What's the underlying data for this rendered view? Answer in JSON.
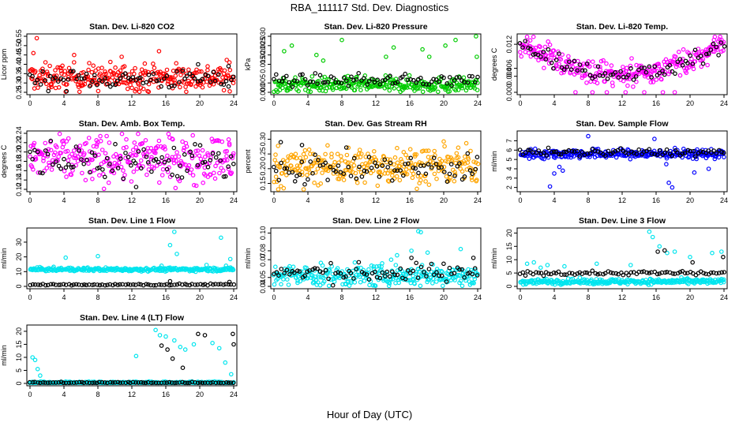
{
  "figure": {
    "title": "RBA_111117  Std. Dev. Diagnostics",
    "xlabel": "Hour of Day (UTC)"
  },
  "chart_data": [
    {
      "type": "scatter",
      "title": "Stan. Dev. Li-820 CO2",
      "ylabel": "Licor ppm",
      "xticks": [
        0,
        4,
        8,
        12,
        16,
        20,
        24
      ],
      "yticks": [
        "0.25",
        "0.30",
        "0.35",
        "0.40",
        "0.45",
        "0.50",
        "0.55"
      ],
      "xlim": [
        0,
        24
      ],
      "ylim": [
        0.25,
        0.55
      ],
      "series": [
        {
          "color": "#ff0000",
          "base": 0.33,
          "spread": 0.035,
          "outliers": [
            [
              0.8,
              0.54
            ],
            [
              0.4,
              0.46
            ],
            [
              5.2,
              0.45
            ],
            [
              10.8,
              0.44
            ],
            [
              15.2,
              0.47
            ],
            [
              23.5,
              0.41
            ]
          ]
        },
        {
          "color": "#000000",
          "base": 0.32,
          "spread": 0.025,
          "outliers": [
            [
              19.8,
              0.4
            ],
            [
              23.4,
              0.39
            ]
          ]
        }
      ]
    },
    {
      "type": "scatter",
      "title": "Stan. Dev. Li-820 Pressure",
      "ylabel": "kPa",
      "xticks": [
        0,
        4,
        8,
        12,
        16,
        20,
        24
      ],
      "yticks": [
        "0.000",
        "0.005",
        "0.015",
        "0.020",
        "0.025",
        "0.030"
      ],
      "xlim": [
        0,
        24
      ],
      "ylim": [
        0,
        0.03
      ],
      "series": [
        {
          "color": "#00cc00",
          "base": 0.004,
          "spread": 0.002,
          "outliers": [
            [
              1.2,
              0.022
            ],
            [
              2.1,
              0.025
            ],
            [
              5.0,
              0.02
            ],
            [
              5.8,
              0.017
            ],
            [
              8.0,
              0.028
            ],
            [
              13.2,
              0.019
            ],
            [
              14.1,
              0.024
            ],
            [
              17.5,
              0.023
            ],
            [
              18.3,
              0.019
            ],
            [
              20.2,
              0.025
            ],
            [
              21.4,
              0.028
            ],
            [
              23.8,
              0.03
            ],
            [
              23.9,
              0.019
            ]
          ]
        },
        {
          "color": "#000000",
          "base": 0.0065,
          "spread": 0.0015,
          "outliers": []
        }
      ]
    },
    {
      "type": "scatter",
      "title": "Stan. Dev. Li-820 Temp.",
      "ylabel": "degrees C",
      "xticks": [
        0,
        4,
        8,
        12,
        16,
        20,
        24
      ],
      "yticks": [
        "0.000",
        "0.004",
        "0.006",
        "0.012"
      ],
      "xlim": [
        0,
        24
      ],
      "ylim": [
        0,
        0.014
      ],
      "series": [
        {
          "color": "#ff00ff",
          "base": 0.006,
          "spread": 0.003,
          "outliers": [
            [
              6.5,
              0.0
            ],
            [
              8.5,
              0.0
            ],
            [
              10.2,
              0.0
            ],
            [
              12.4,
              0.0
            ],
            [
              14.6,
              0.0
            ],
            [
              16.8,
              0.0
            ],
            [
              18.2,
              0.0
            ]
          ]
        },
        {
          "color": "#000000",
          "base": 0.007,
          "spread": 0.002,
          "outliers": []
        }
      ]
    },
    {
      "type": "scatter",
      "title": "Stan. Dev. Amb. Box Temp.",
      "ylabel": "degrees C",
      "xticks": [
        0,
        4,
        8,
        12,
        16,
        20,
        24
      ],
      "yticks": [
        "0.12",
        "0.14",
        "0.16",
        "0.18",
        "0.20",
        "0.22",
        "0.24"
      ],
      "xlim": [
        0,
        24
      ],
      "ylim": [
        0.12,
        0.24
      ],
      "series": [
        {
          "color": "#ff00ff",
          "base": 0.185,
          "spread": 0.025,
          "outliers": [
            [
              0.4,
              0.215
            ],
            [
              23.5,
              0.215
            ]
          ]
        },
        {
          "color": "#000000",
          "base": 0.18,
          "spread": 0.022,
          "outliers": [
            [
              12.5,
              0.125
            ]
          ]
        }
      ]
    },
    {
      "type": "scatter",
      "title": "Stan. Dev. Gas Stream RH",
      "ylabel": "percent",
      "xticks": [
        0,
        4,
        8,
        12,
        16,
        20,
        24
      ],
      "yticks": [
        "0.15",
        "0.20",
        "0.25",
        "0.30"
      ],
      "xlim": [
        0,
        24
      ],
      "ylim": [
        0.13,
        0.32
      ],
      "series": [
        {
          "color": "#ffa500",
          "base": 0.21,
          "spread": 0.03,
          "outliers": [
            [
              0.5,
              0.13
            ],
            [
              3.5,
              0.13
            ],
            [
              7.5,
              0.25
            ],
            [
              14.5,
              0.27
            ]
          ]
        },
        {
          "color": "#000000",
          "base": 0.2,
          "spread": 0.025,
          "outliers": [
            [
              0.8,
              0.29
            ],
            [
              3.3,
              0.28
            ]
          ]
        }
      ]
    },
    {
      "type": "scatter",
      "title": "Stan. Dev. Sample Flow",
      "ylabel": "ml/min",
      "xticks": [
        0,
        4,
        8,
        12,
        16,
        20,
        24
      ],
      "yticks": [
        "2",
        "3",
        "4",
        "5",
        "6",
        "7"
      ],
      "xlim": [
        0,
        24
      ],
      "ylim": [
        1.8,
        7.8
      ],
      "series": [
        {
          "color": "#0000ff",
          "base": 5.6,
          "spread": 0.25,
          "outliers": [
            [
              3.5,
              2.1
            ],
            [
              4.0,
              3.5
            ],
            [
              4.6,
              4.2
            ],
            [
              5.0,
              3.8
            ],
            [
              8.0,
              7.5
            ],
            [
              17.5,
              2.5
            ],
            [
              17.9,
              2.0
            ],
            [
              17.2,
              4.5
            ],
            [
              20.5,
              3.6
            ],
            [
              15.8,
              7.2
            ],
            [
              22.2,
              4.0
            ]
          ]
        },
        {
          "color": "#000000",
          "base": 5.75,
          "spread": 0.2,
          "outliers": []
        }
      ]
    },
    {
      "type": "scatter",
      "title": "Stan. Dev. Line 1 Flow",
      "ylabel": "ml/min",
      "xticks": [
        0,
        4,
        8,
        12,
        16,
        20,
        24
      ],
      "yticks": [
        "0",
        "10",
        "20",
        "30"
      ],
      "xlim": [
        0,
        24
      ],
      "ylim": [
        0,
        38
      ],
      "series": [
        {
          "color": "#00e5ee",
          "base": 11.5,
          "spread": 0.6,
          "outliers": [
            [
              4.2,
              19.5
            ],
            [
              8.0,
              20.5
            ],
            [
              16.5,
              28.0
            ],
            [
              17.0,
              37.0
            ],
            [
              17.3,
              22.0
            ],
            [
              22.5,
              33.0
            ],
            [
              23.6,
              18.5
            ],
            [
              15.5,
              14.0
            ],
            [
              20.8,
              14.5
            ],
            [
              23.1,
              14.0
            ]
          ]
        },
        {
          "color": "#000000",
          "base": 1.2,
          "spread": 0.3,
          "outliers": [
            [
              16.5,
              3.5
            ],
            [
              23.5,
              3.0
            ]
          ]
        }
      ]
    },
    {
      "type": "scatter",
      "title": "Stan. Dev. Line 2 Flow",
      "ylabel": "ml/min",
      "xticks": [
        0,
        4,
        8,
        12,
        16,
        20,
        24
      ],
      "yticks": [
        "0.04",
        "0.05",
        "0.07",
        "0.08",
        "0.10"
      ],
      "xlim": [
        0,
        24
      ],
      "ylim": [
        0.04,
        0.103
      ],
      "series": [
        {
          "color": "#00e5ee",
          "base": 0.052,
          "spread": 0.006,
          "outliers": [
            [
              17.0,
              0.102
            ],
            [
              17.3,
              0.101
            ],
            [
              13.8,
              0.07
            ],
            [
              14.5,
              0.075
            ],
            [
              16.2,
              0.08
            ],
            [
              18.1,
              0.078
            ],
            [
              22.0,
              0.082
            ]
          ]
        },
        {
          "color": "#000000",
          "base": 0.055,
          "spread": 0.005,
          "outliers": [
            [
              16.2,
              0.072
            ],
            [
              23.5,
              0.072
            ]
          ]
        }
      ]
    },
    {
      "type": "scatter",
      "title": "Stan. Dev. Line 3 Flow",
      "ylabel": "ml/min",
      "xticks": [
        0,
        4,
        8,
        12,
        16,
        20,
        24
      ],
      "yticks": [
        "0",
        "5",
        "10",
        "15",
        "20"
      ],
      "xlim": [
        0,
        24
      ],
      "ylim": [
        0,
        21
      ],
      "series": [
        {
          "color": "#00e5ee",
          "base": 1.8,
          "spread": 0.5,
          "outliers": [
            [
              0.8,
              8.5
            ],
            [
              1.6,
              9.0
            ],
            [
              2.4,
              7.0
            ],
            [
              3.2,
              8.0
            ],
            [
              5.2,
              7.5
            ],
            [
              9.0,
              8.5
            ],
            [
              13.0,
              8.0
            ],
            [
              15.2,
              20.5
            ],
            [
              15.6,
              18.5
            ],
            [
              16.4,
              15.0
            ],
            [
              17.3,
              12.5
            ],
            [
              18.2,
              13.0
            ],
            [
              20.0,
              11.0
            ],
            [
              22.6,
              12.5
            ],
            [
              23.7,
              13.0
            ]
          ]
        },
        {
          "color": "#000000",
          "base": 5.0,
          "spread": 0.4,
          "outliers": [
            [
              16.2,
              13.0
            ],
            [
              17.0,
              13.5
            ],
            [
              20.3,
              9.0
            ],
            [
              23.9,
              11.0
            ]
          ]
        }
      ]
    },
    {
      "type": "scatter",
      "title": "Stan. Dev. Line 4 (LT) Flow",
      "ylabel": "ml/min",
      "xticks": [
        0,
        4,
        8,
        12,
        16,
        20,
        24
      ],
      "yticks": [
        "0",
        "5",
        "10",
        "15",
        "20"
      ],
      "xlim": [
        0,
        24
      ],
      "ylim": [
        0,
        21.5
      ],
      "series": [
        {
          "color": "#00e5ee",
          "base": 0.3,
          "spread": 0.2,
          "outliers": [
            [
              0.3,
              10.0
            ],
            [
              0.6,
              9.0
            ],
            [
              0.9,
              5.5
            ],
            [
              1.2,
              3.0
            ],
            [
              12.5,
              10.5
            ],
            [
              14.8,
              20.5
            ],
            [
              15.3,
              18.5
            ],
            [
              16.0,
              18.0
            ],
            [
              17.0,
              16.5
            ],
            [
              17.7,
              14.0
            ],
            [
              18.3,
              13.0
            ],
            [
              19.3,
              15.0
            ],
            [
              21.5,
              15.5
            ],
            [
              22.3,
              13.5
            ],
            [
              23.0,
              8.0
            ],
            [
              23.7,
              3.5
            ]
          ]
        },
        {
          "color": "#000000",
          "base": 0.3,
          "spread": 0.15,
          "outliers": [
            [
              15.5,
              14.5
            ],
            [
              16.2,
              13.0
            ],
            [
              16.8,
              9.5
            ],
            [
              18.0,
              6.0
            ],
            [
              19.8,
              19.0
            ],
            [
              20.6,
              18.5
            ],
            [
              23.9,
              19.0
            ],
            [
              24.0,
              15.0
            ]
          ]
        }
      ]
    }
  ]
}
